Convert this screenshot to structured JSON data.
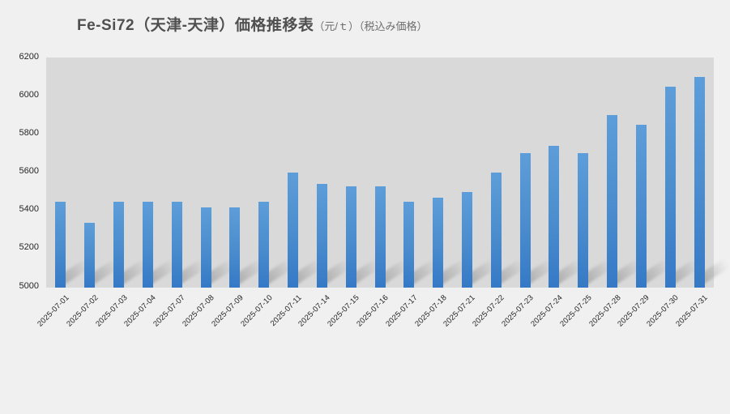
{
  "title": {
    "main": "Fe-Si72（天津-天津）価格推移表",
    "unit": "（元/ｔ）",
    "note": "（税込み価格）"
  },
  "chart_data": {
    "type": "bar",
    "title": "Fe-Si72（天津-天津）価格推移表（元/ｔ）（税込み価格）",
    "categories": [
      "2025-07-01",
      "2025-07-02",
      "2025-07-03",
      "2025-07-04",
      "2025-07-07",
      "2025-07-08",
      "2025-07-09",
      "2025-07-10",
      "2025-07-11",
      "2025-07-14",
      "2025-07-15",
      "2025-07-16",
      "2025-07-17",
      "2025-07-18",
      "2025-07-21",
      "2025-07-22",
      "2025-07-23",
      "2025-07-24",
      "2025-07-25",
      "2025-07-28",
      "2025-07-29",
      "2025-07-30",
      "2025-07-31"
    ],
    "values": [
      5450,
      5340,
      5450,
      5450,
      5450,
      5420,
      5420,
      5450,
      5600,
      5540,
      5530,
      5530,
      5450,
      5470,
      5500,
      5600,
      5700,
      5740,
      5700,
      5900,
      5850,
      6050,
      6100
    ],
    "xlabel": "",
    "ylabel": "",
    "ylim": [
      5000,
      6200
    ],
    "yticks": [
      6200,
      6000,
      5800,
      5600,
      5400,
      5200,
      5000
    ],
    "grid": false,
    "legend": false,
    "colors": {
      "bar_top": "#5d9dd9",
      "bar_bottom": "#3579c6",
      "plot_bg": "#d9d9d9",
      "page_bg": "#f0f0f0",
      "title_text": "#4f4f4f",
      "axis_text": "#262626"
    }
  }
}
